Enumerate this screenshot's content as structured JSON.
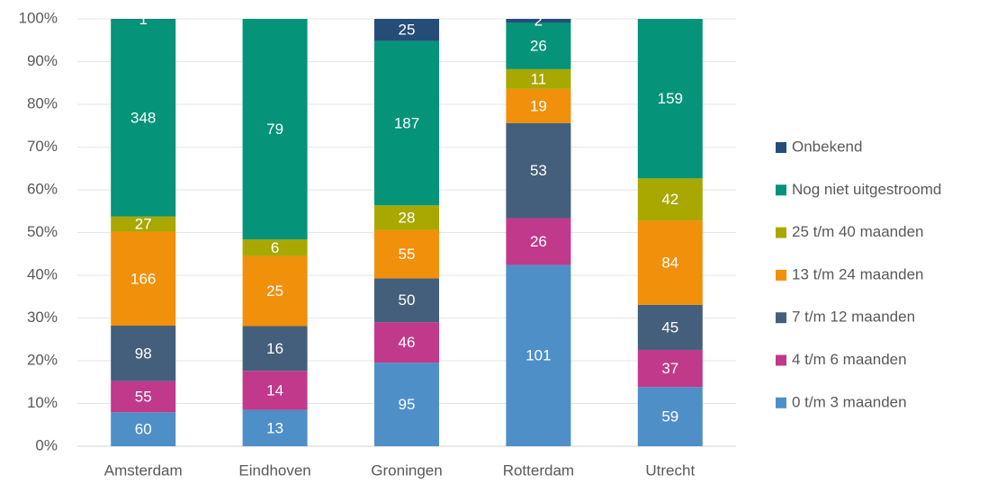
{
  "chart_data": {
    "type": "bar",
    "stacking": "percent",
    "categories": [
      "Amsterdam",
      "Eindhoven",
      "Groningen",
      "Rotterdam",
      "Utrecht"
    ],
    "series": [
      {
        "name": "0 t/m 3 maanden",
        "color": "#4e8fc8",
        "values": [
          60,
          13,
          95,
          101,
          59
        ]
      },
      {
        "name": "4 t/m 6 maanden",
        "color": "#c0398b",
        "values": [
          55,
          14,
          46,
          26,
          37
        ]
      },
      {
        "name": "7 t/m 12 maanden",
        "color": "#445f7b",
        "values": [
          98,
          16,
          50,
          53,
          45
        ]
      },
      {
        "name": "13 t/m 24 maanden",
        "color": "#f0900b",
        "values": [
          166,
          25,
          55,
          19,
          84
        ]
      },
      {
        "name": "25 t/m 40 maanden",
        "color": "#a8a800",
        "values": [
          27,
          6,
          28,
          11,
          42
        ]
      },
      {
        "name": "Nog niet uitgestroomd",
        "color": "#05937a",
        "values": [
          348,
          79,
          187,
          26,
          159
        ]
      },
      {
        "name": "Onbekend",
        "color": "#254d78",
        "values": [
          1,
          null,
          25,
          2,
          null
        ]
      }
    ],
    "ylim": [
      0,
      100
    ],
    "yticks": [
      {
        "value": 0,
        "label": "0%"
      },
      {
        "value": 10,
        "label": "10%"
      },
      {
        "value": 20,
        "label": "20%"
      },
      {
        "value": 30,
        "label": "30%"
      },
      {
        "value": 40,
        "label": "40%"
      },
      {
        "value": 50,
        "label": "50%"
      },
      {
        "value": 60,
        "label": "60%"
      },
      {
        "value": 70,
        "label": "70%"
      },
      {
        "value": 80,
        "label": "80%"
      },
      {
        "value": 90,
        "label": "90%"
      },
      {
        "value": 100,
        "label": "100%"
      }
    ],
    "grid": true,
    "legend": "right"
  }
}
